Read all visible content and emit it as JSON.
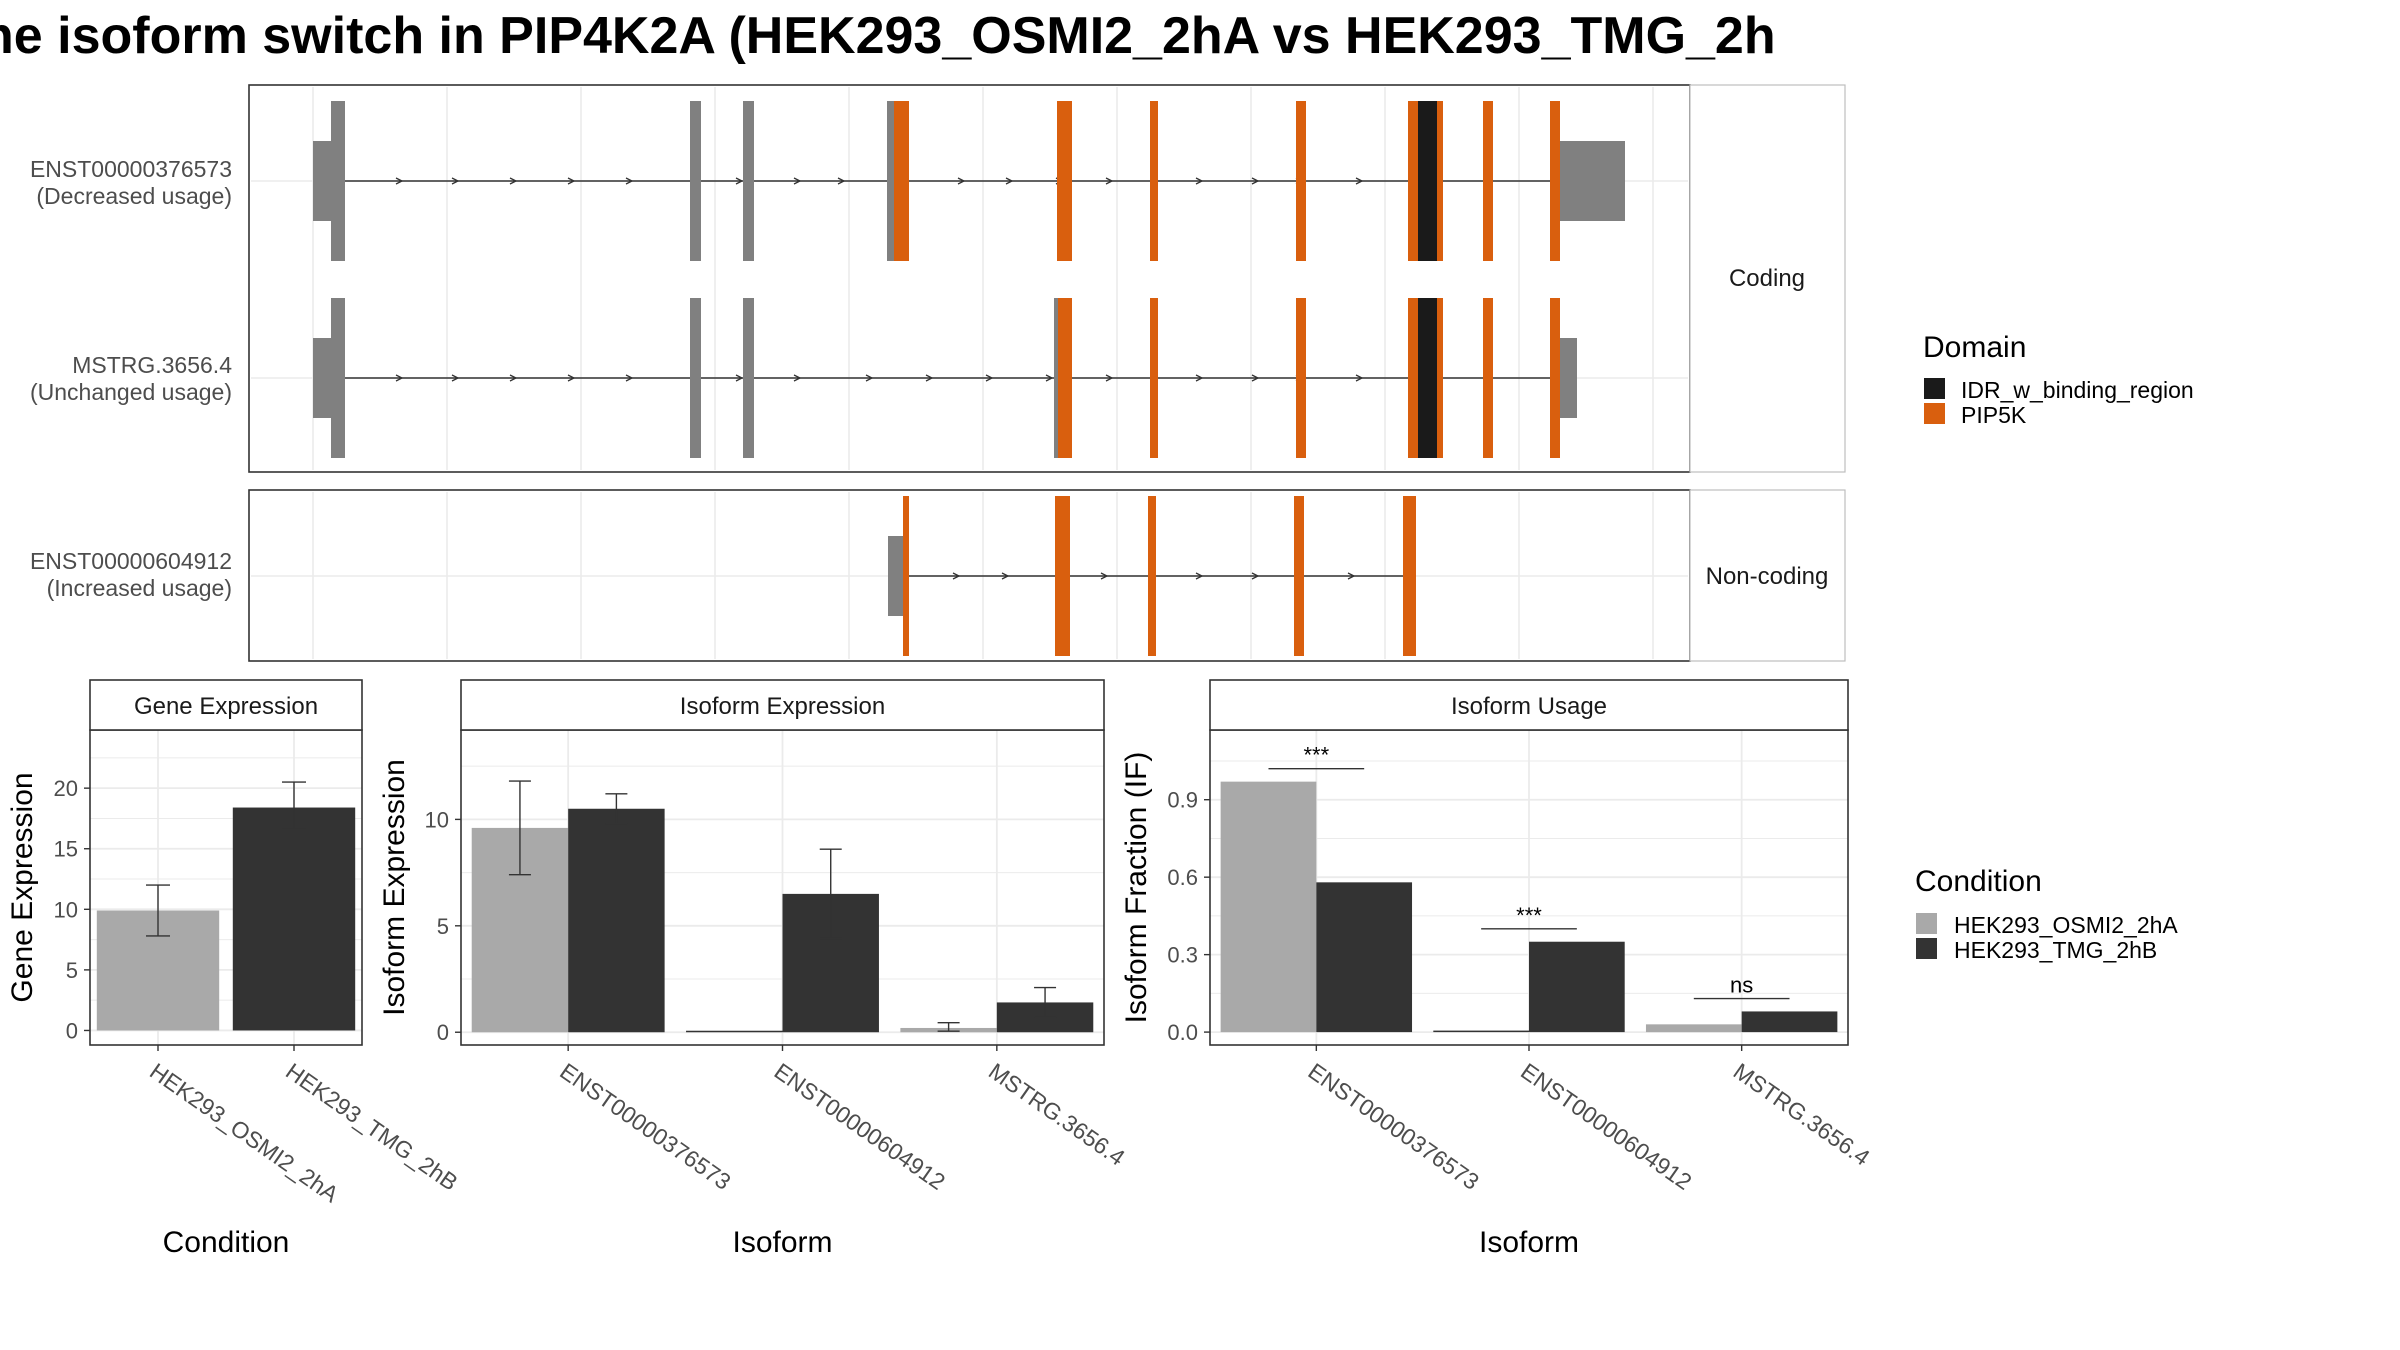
{
  "title": "ne isoform switch in PIP4K2A (HEK293_OSMI2_2hA vs HEK293_TMG_2h",
  "colors": {
    "condition_a": "#a9a9a9",
    "condition_b": "#333333",
    "pip5k": "#d95f0e",
    "idr": "#1a1a1a",
    "utr": "#808080",
    "grid": "#ebebeb",
    "strip_bg": "#ffffff"
  },
  "transcript_panel": {
    "facets": [
      {
        "label": "Coding",
        "transcripts": [
          {
            "label_lines": [
              "ENST00000376573",
              "(Decreased usage)"
            ]
          },
          {
            "label_lines": [
              "MSTRG.3656.4",
              "(Unchanged usage)"
            ]
          }
        ]
      },
      {
        "label": "Non-coding",
        "transcripts": [
          {
            "label_lines": [
              "ENST00000604912",
              "(Increased usage)"
            ]
          }
        ]
      }
    ],
    "domain_legend": {
      "title": "Domain",
      "items": [
        {
          "label": "IDR_w_binding_region",
          "color": "#1a1a1a"
        },
        {
          "label": "PIP5K",
          "color": "#d95f0e"
        }
      ]
    }
  },
  "condition_legend": {
    "title": "Condition",
    "items": [
      {
        "label": "HEK293_OSMI2_2hA",
        "color": "#a9a9a9"
      },
      {
        "label": "HEK293_TMG_2hB",
        "color": "#333333"
      }
    ]
  },
  "chart_data": [
    {
      "type": "bar",
      "title": "Gene Expression",
      "xlabel": "Condition",
      "ylabel": "Gene Expression",
      "categories": [
        "HEK293_OSMI2_2hA",
        "HEK293_TMG_2hB"
      ],
      "values": [
        9.9,
        18.4
      ],
      "error_low": [
        7.8,
        16.6
      ],
      "error_high": [
        12.0,
        20.5
      ],
      "colors": [
        "#a9a9a9",
        "#333333"
      ],
      "ylim": [
        -1.2,
        24.8
      ],
      "yticks": [
        0,
        5,
        10,
        15,
        20
      ],
      "grid": true
    },
    {
      "type": "bar",
      "title": "Isoform Expression",
      "xlabel": "Isoform",
      "ylabel": "Isoform Expression",
      "categories": [
        "ENST00000376573",
        "ENST00000604912",
        "MSTRG.3656.4"
      ],
      "series": [
        {
          "name": "HEK293_OSMI2_2hA",
          "values": [
            9.6,
            0.0,
            0.2
          ],
          "error_low": [
            7.4,
            0.0,
            0.05
          ],
          "error_high": [
            11.8,
            0.0,
            0.45
          ]
        },
        {
          "name": "HEK293_TMG_2hB",
          "values": [
            10.5,
            6.5,
            1.4
          ],
          "error_low": [
            9.8,
            4.4,
            0.7
          ],
          "error_high": [
            11.2,
            8.6,
            2.1
          ]
        }
      ],
      "ylim": [
        -0.6,
        14.2
      ],
      "yticks": [
        0,
        5,
        10
      ],
      "grid": true
    },
    {
      "type": "bar",
      "title": "Isoform Usage",
      "xlabel": "Isoform",
      "ylabel": "Isoform Fraction (IF)",
      "categories": [
        "ENST00000376573",
        "ENST00000604912",
        "MSTRG.3656.4"
      ],
      "series": [
        {
          "name": "HEK293_OSMI2_2hA",
          "values": [
            0.97,
            0.0,
            0.03
          ]
        },
        {
          "name": "HEK293_TMG_2hB",
          "values": [
            0.58,
            0.35,
            0.08
          ]
        }
      ],
      "significance": [
        "***",
        "***",
        "ns"
      ],
      "sig_heights": [
        1.02,
        0.4,
        0.13
      ],
      "ylim": [
        -0.05,
        1.17
      ],
      "yticks": [
        "0.0",
        "0.3",
        "0.6",
        "0.9"
      ],
      "grid": true
    }
  ]
}
